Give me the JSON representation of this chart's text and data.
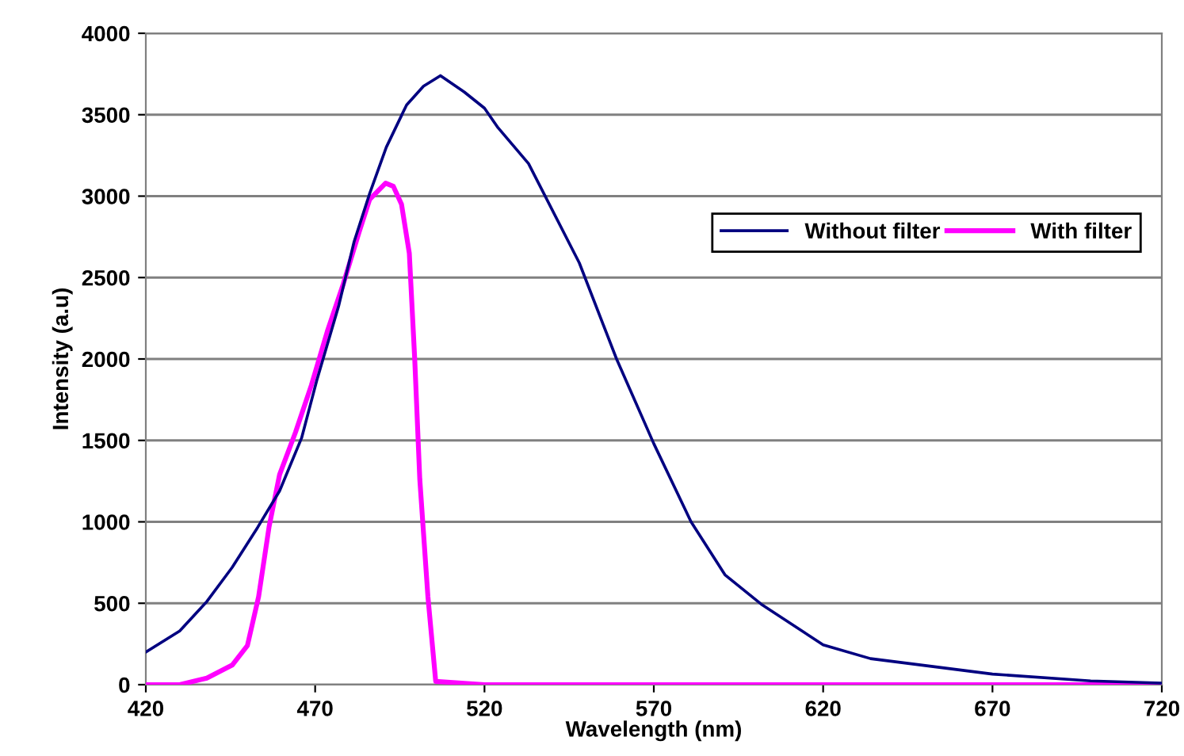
{
  "chart_data": {
    "type": "line",
    "xlabel": "Wavelength (nm)",
    "ylabel": "Intensity (a.u)",
    "xlim": [
      420,
      720
    ],
    "xticks": [
      420,
      470,
      520,
      570,
      620,
      670,
      720
    ],
    "ylim": [
      0,
      4000
    ],
    "yticks": [
      0,
      500,
      1000,
      1500,
      2000,
      2500,
      3000,
      3500,
      4000
    ],
    "grid": "y",
    "legend": "top right",
    "marker": "none",
    "line_style": "solid",
    "series": [
      {
        "name": "Without filter",
        "color": "#000080",
        "x": [
          420,
          430,
          438,
          445.5,
          453,
          459.5,
          466,
          470.5,
          477,
          481.5,
          486,
          491,
          497,
          502,
          507,
          514,
          520,
          524,
          533,
          548,
          559,
          570,
          581,
          591,
          602,
          620,
          634,
          670,
          699,
          720
        ],
        "values": [
          200,
          330,
          510,
          720,
          965,
          1190,
          1515,
          1870,
          2330,
          2720,
          3010,
          3300,
          3560,
          3675,
          3740,
          3640,
          3540,
          3420,
          3200,
          2590,
          2000,
          1480,
          1000,
          675,
          490,
          245,
          160,
          65,
          23,
          10
        ]
      },
      {
        "name": "With filter",
        "color": "#ff00ff",
        "x": [
          420,
          430,
          438,
          445.5,
          450,
          453.3,
          456.4,
          459.5,
          464.2,
          468.9,
          473.6,
          478.3,
          483,
          486.1,
          490.8,
          493.1,
          495.5,
          497.8,
          499.4,
          500.9,
          503.3,
          505.6,
          520,
          570,
          620,
          670,
          720
        ],
        "values": [
          0,
          0,
          40,
          120,
          240,
          540,
          970,
          1290,
          1550,
          1840,
          2170,
          2460,
          2780,
          2980,
          3080,
          3060,
          2950,
          2650,
          2000,
          1260,
          540,
          20,
          0,
          0,
          0,
          0,
          0
        ]
      }
    ]
  }
}
